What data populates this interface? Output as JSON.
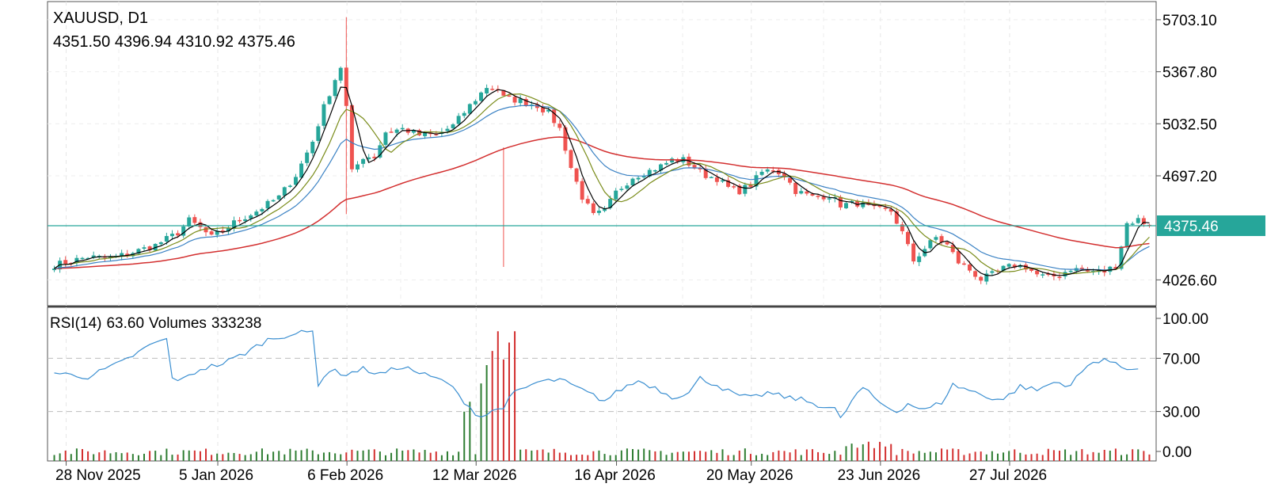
{
  "header": {
    "symbol": "XAUUSD, D1",
    "ohlc": "4351.50 4396.94 4310.92 4375.46"
  },
  "rsi_panel": {
    "rsi_label": "RSI(14)",
    "rsi_value": "63.60",
    "volume_label": "Volumes",
    "volume_value": "333238"
  },
  "price_axis": {
    "ticks": [
      5703.1,
      5367.8,
      5032.5,
      4697.2,
      4026.6
    ],
    "tick_labels": [
      "5703.10",
      "5367.80",
      "5032.50",
      "4697.20",
      "4026.60"
    ],
    "current_price_label": "4375.46"
  },
  "rsi_axis": {
    "ticks": [
      100,
      70,
      30,
      0
    ],
    "tick_labels": [
      "100.00",
      "70.00",
      "30.00",
      "0.00"
    ]
  },
  "date_axis": {
    "labels": [
      "28 Nov 2025",
      "5 Jan 2026",
      "6 Feb 2026",
      "12 Mar 2026",
      "16 Apr 2026",
      "20 May 2026",
      "23 Jun 2026",
      "27 Jul 2026"
    ],
    "label_bar_index": [
      0,
      27,
      50,
      73,
      98,
      122,
      145,
      168
    ]
  },
  "colors": {
    "bull": "#26a69a",
    "bear": "#ef5350",
    "ma_fast": "#000000",
    "ma_mid": "#7a8c1a",
    "ma_slow": "#3b82c4",
    "ma_long": "#d32f2f",
    "rsi_line": "#3b8fd1",
    "price_line": "#26a69a",
    "vol_bull": "#2e7d32",
    "vol_bear": "#d32f2f"
  },
  "chart_data": {
    "type": "candlestick",
    "title": "XAUUSD, D1",
    "current_price": 4375.46,
    "ylim": [
      3860,
      5820
    ],
    "rsi_range": [
      0,
      100
    ],
    "rsi_levels": [
      70,
      30
    ],
    "bar_count": 196,
    "volume_max": 333238,
    "close_anchors": [
      [
        0,
        4122
      ],
      [
        6,
        4175
      ],
      [
        10,
        4165
      ],
      [
        14,
        4205
      ],
      [
        18,
        4250
      ],
      [
        22,
        4330
      ],
      [
        24,
        4410
      ],
      [
        26,
        4360
      ],
      [
        28,
        4300
      ],
      [
        32,
        4395
      ],
      [
        36,
        4470
      ],
      [
        40,
        4560
      ],
      [
        43,
        4700
      ],
      [
        46,
        4920
      ],
      [
        48,
        5140
      ],
      [
        50,
        5320
      ],
      [
        51,
        5400
      ],
      [
        52,
        5140
      ],
      [
        53,
        4720
      ],
      [
        55,
        4820
      ],
      [
        57,
        4820
      ],
      [
        59,
        4980
      ],
      [
        62,
        5000
      ],
      [
        65,
        4960
      ],
      [
        68,
        4960
      ],
      [
        71,
        5020
      ],
      [
        74,
        5150
      ],
      [
        77,
        5270
      ],
      [
        79,
        5260
      ],
      [
        80,
        5200
      ],
      [
        83,
        5180
      ],
      [
        86,
        5150
      ],
      [
        88,
        5100
      ],
      [
        90,
        5000
      ],
      [
        92,
        4750
      ],
      [
        94,
        4560
      ],
      [
        96,
        4440
      ],
      [
        98,
        4470
      ],
      [
        100,
        4590
      ],
      [
        103,
        4690
      ],
      [
        106,
        4730
      ],
      [
        108,
        4760
      ],
      [
        110,
        4800
      ],
      [
        112,
        4800
      ],
      [
        114,
        4750
      ],
      [
        116,
        4700
      ],
      [
        118,
        4680
      ],
      [
        120,
        4620
      ],
      [
        122,
        4600
      ],
      [
        124,
        4640
      ],
      [
        126,
        4720
      ],
      [
        128,
        4740
      ],
      [
        130,
        4700
      ],
      [
        132,
        4600
      ],
      [
        135,
        4560
      ],
      [
        138,
        4570
      ],
      [
        140,
        4510
      ],
      [
        143,
        4520
      ],
      [
        146,
        4480
      ],
      [
        149,
        4470
      ],
      [
        151,
        4330
      ],
      [
        153,
        4150
      ],
      [
        155,
        4230
      ],
      [
        157,
        4300
      ],
      [
        159,
        4250
      ],
      [
        161,
        4140
      ],
      [
        163,
        4090
      ],
      [
        165,
        4030
      ],
      [
        167,
        4060
      ],
      [
        169,
        4100
      ],
      [
        171,
        4120
      ],
      [
        173,
        4110
      ],
      [
        175,
        4060
      ],
      [
        177,
        4040
      ],
      [
        179,
        4060
      ],
      [
        181,
        4100
      ],
      [
        184,
        4085
      ],
      [
        187,
        4080
      ],
      [
        189,
        4120
      ],
      [
        190,
        4250
      ],
      [
        191,
        4390
      ],
      [
        193,
        4415
      ],
      [
        195,
        4375
      ]
    ],
    "rsi_anchors": [
      [
        0,
        59
      ],
      [
        6,
        56
      ],
      [
        12,
        67
      ],
      [
        18,
        82
      ],
      [
        20,
        84
      ],
      [
        21,
        55
      ],
      [
        23,
        54
      ],
      [
        26,
        62
      ],
      [
        30,
        66
      ],
      [
        34,
        74
      ],
      [
        38,
        84
      ],
      [
        42,
        88
      ],
      [
        46,
        90
      ],
      [
        47,
        51
      ],
      [
        49,
        61
      ],
      [
        52,
        58
      ],
      [
        55,
        62
      ],
      [
        58,
        58
      ],
      [
        62,
        64
      ],
      [
        65,
        59
      ],
      [
        67,
        56
      ],
      [
        70,
        52
      ],
      [
        72,
        42
      ],
      [
        75,
        29
      ],
      [
        76,
        26
      ],
      [
        78,
        30
      ],
      [
        80,
        34
      ],
      [
        82,
        44
      ],
      [
        86,
        52
      ],
      [
        90,
        54
      ],
      [
        93,
        48
      ],
      [
        96,
        42
      ],
      [
        98,
        38
      ],
      [
        101,
        47
      ],
      [
        104,
        53
      ],
      [
        107,
        48
      ],
      [
        110,
        41
      ],
      [
        113,
        44
      ],
      [
        115,
        55
      ],
      [
        118,
        50
      ],
      [
        121,
        43
      ],
      [
        124,
        40
      ],
      [
        127,
        44
      ],
      [
        130,
        41
      ],
      [
        133,
        39
      ],
      [
        136,
        35
      ],
      [
        139,
        32
      ],
      [
        140,
        24
      ],
      [
        142,
        38
      ],
      [
        144,
        48
      ],
      [
        146,
        40
      ],
      [
        148,
        34
      ],
      [
        150,
        30
      ],
      [
        152,
        36
      ],
      [
        155,
        31
      ],
      [
        158,
        37
      ],
      [
        160,
        50
      ],
      [
        163,
        46
      ],
      [
        166,
        41
      ],
      [
        169,
        39
      ],
      [
        172,
        49
      ],
      [
        175,
        46
      ],
      [
        178,
        52
      ],
      [
        181,
        50
      ],
      [
        183,
        60
      ],
      [
        185,
        67
      ],
      [
        187,
        70
      ],
      [
        189,
        65
      ],
      [
        191,
        62
      ],
      [
        193,
        63.6
      ]
    ],
    "volume_spikes": [
      [
        73,
        0.35
      ],
      [
        74,
        0.42
      ],
      [
        76,
        0.55
      ],
      [
        77,
        0.68
      ],
      [
        78,
        0.78
      ],
      [
        79,
        0.92
      ],
      [
        80,
        0.72
      ],
      [
        81,
        0.84
      ],
      [
        82,
        0.92
      ]
    ],
    "long_wicks": [
      [
        52,
        5720,
        4450
      ],
      [
        80,
        4880,
        4110
      ]
    ]
  }
}
